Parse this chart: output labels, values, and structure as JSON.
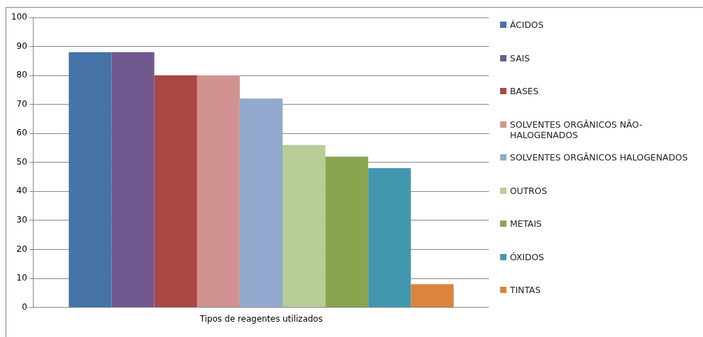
{
  "chart_data": {
    "type": "bar",
    "categories": [
      "Tipos de reagentes utilizados"
    ],
    "series": [
      {
        "name": "ÁCIDOS",
        "color": "#4572a7",
        "values": [
          88
        ]
      },
      {
        "name": "SAIS",
        "color": "#71588f",
        "values": [
          88
        ]
      },
      {
        "name": "BASES",
        "color": "#aa4643",
        "values": [
          80
        ]
      },
      {
        "name": "SOLVENTES ORGÂNICOS NÃO-HALOGENADOS",
        "color": "#d09392",
        "values": [
          80
        ]
      },
      {
        "name": "SOLVENTES ORGÂNICOS HALOGENADOS",
        "color": "#93a9cf",
        "values": [
          72
        ]
      },
      {
        "name": "OUTROS",
        "color": "#b9cd96",
        "values": [
          56
        ]
      },
      {
        "name": "METAIS",
        "color": "#89a54e",
        "values": [
          52
        ]
      },
      {
        "name": "ÓXIDOS",
        "color": "#4198af",
        "values": [
          48
        ]
      },
      {
        "name": "TINTAS",
        "color": "#db843d",
        "values": [
          8
        ]
      }
    ],
    "ylim": [
      0,
      100
    ],
    "yticks": [
      0,
      10,
      20,
      30,
      40,
      50,
      60,
      70,
      80,
      90,
      100
    ],
    "grid": "y",
    "legend": "right"
  }
}
